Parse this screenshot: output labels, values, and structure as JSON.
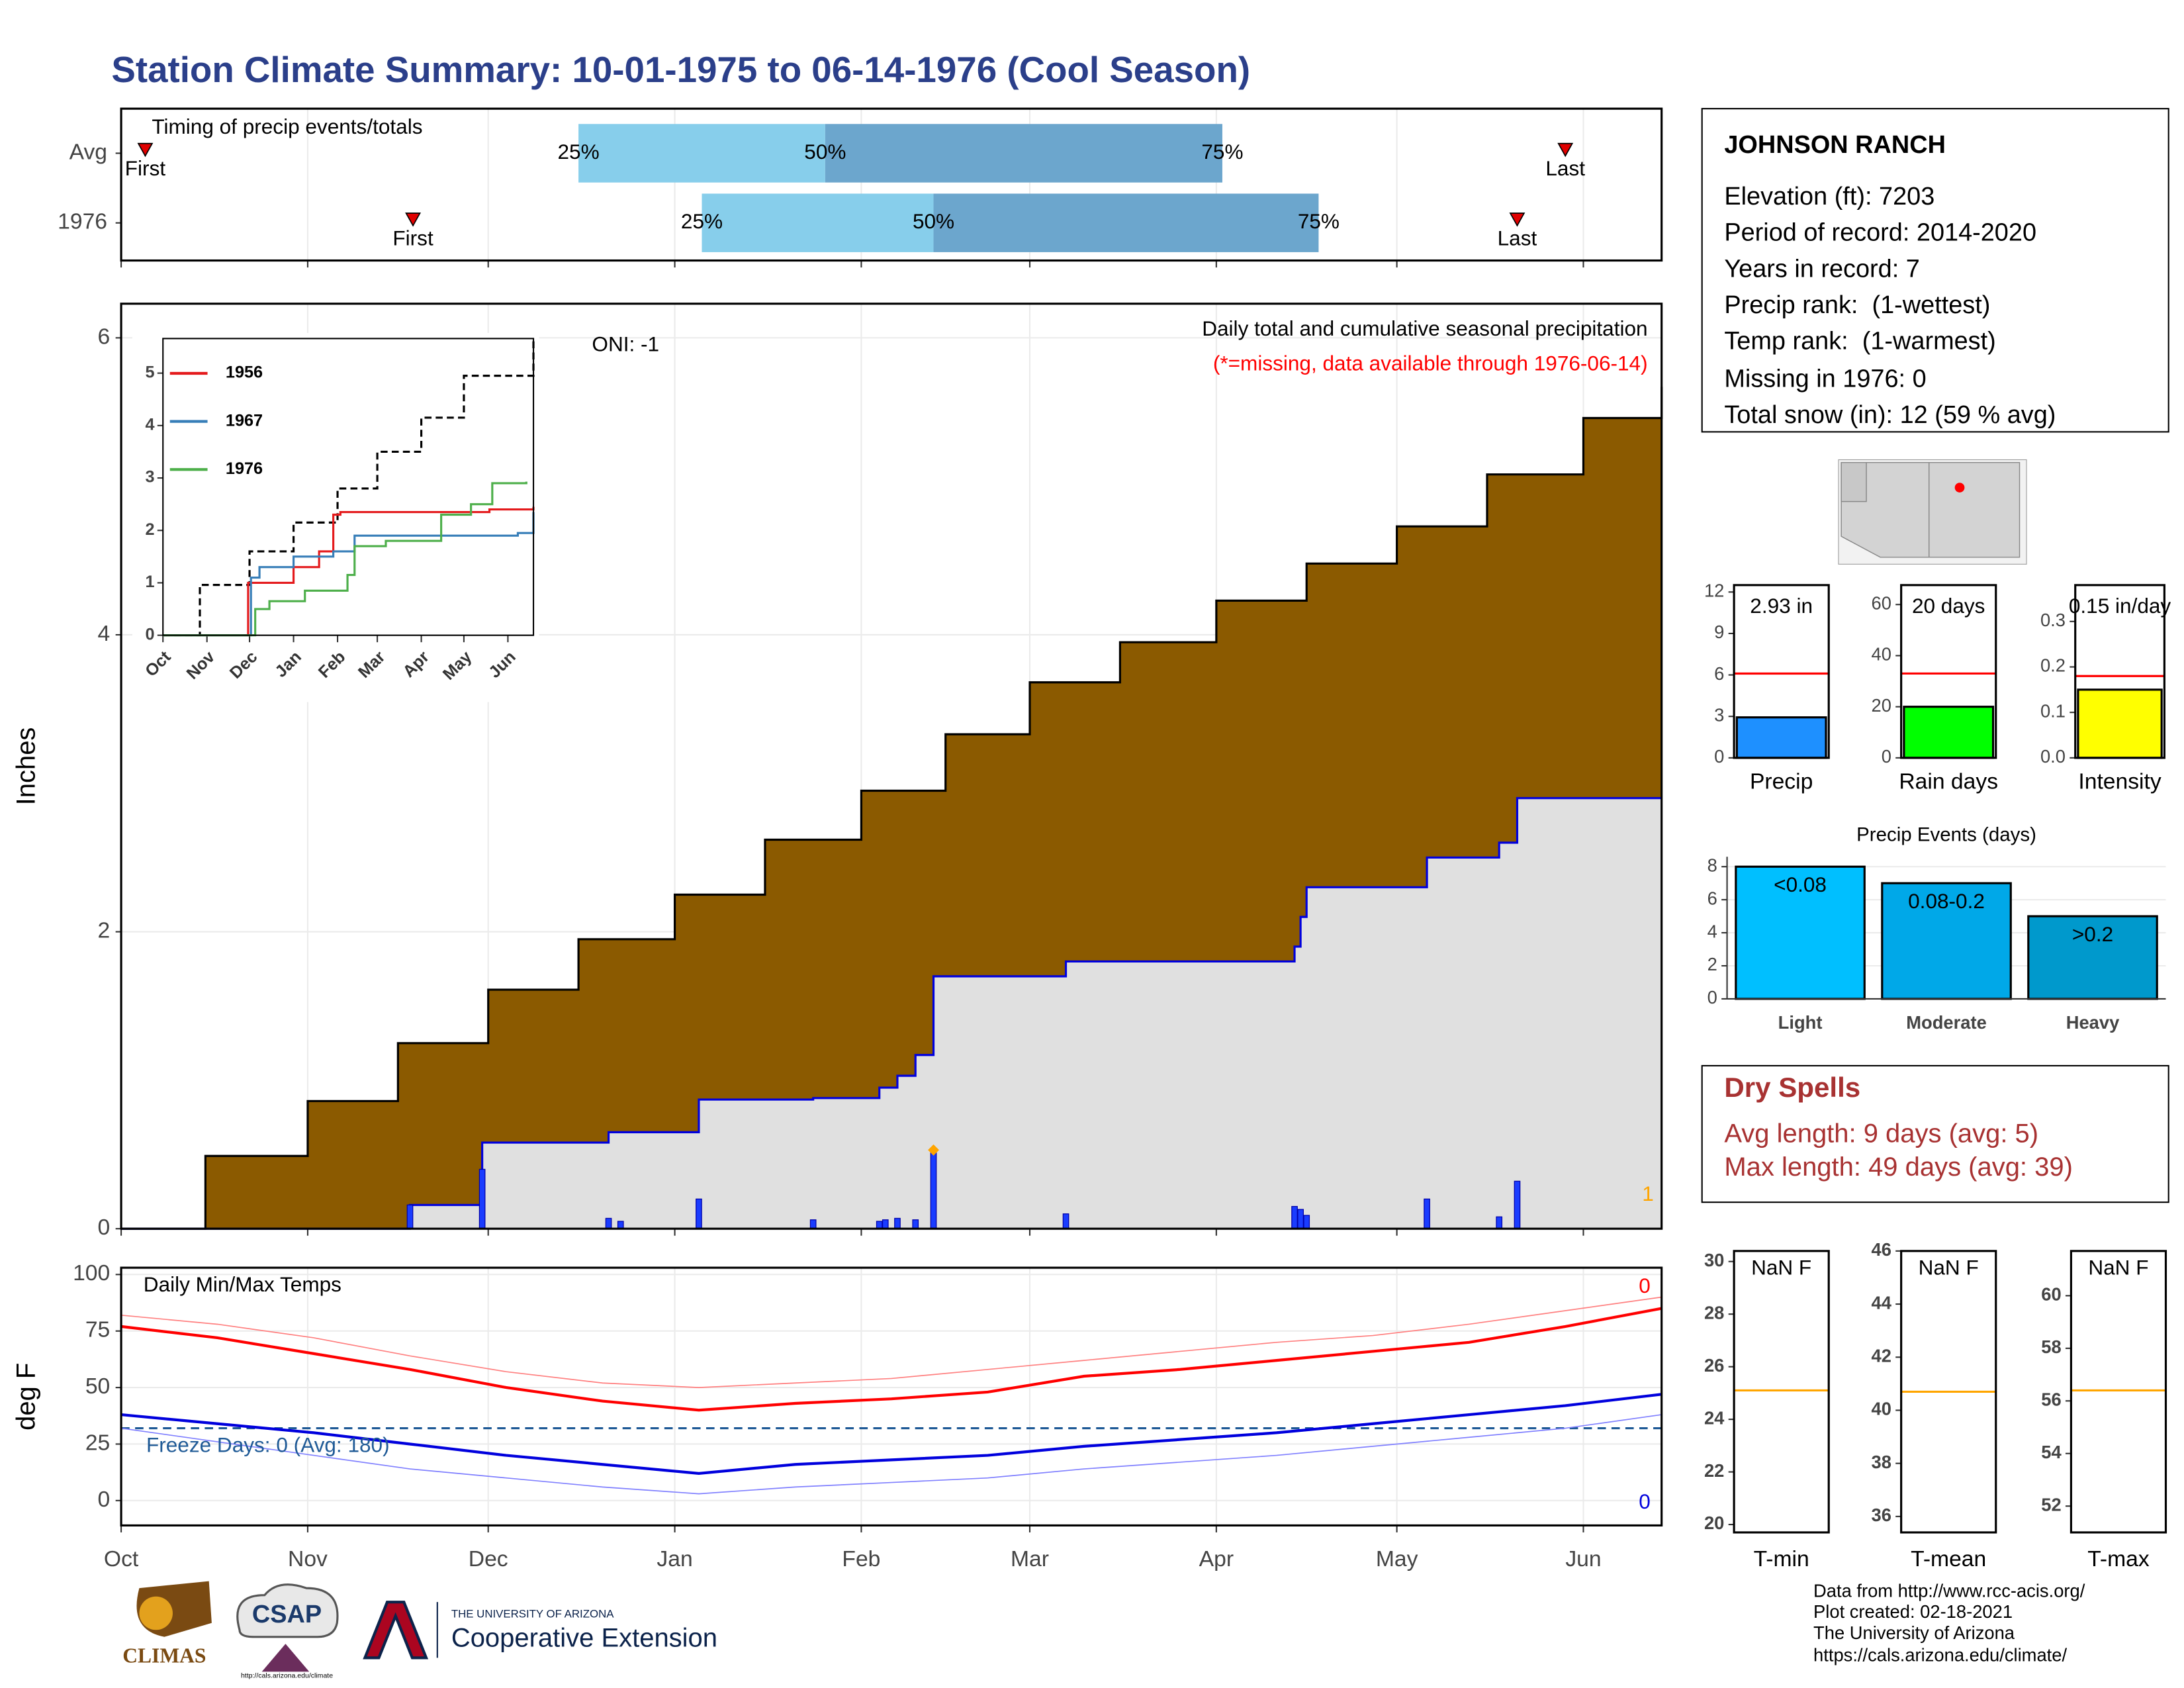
{
  "title": "Station Climate Summary: 10-01-1975 to 06-14-1976 (Cool Season)",
  "station": {
    "name": "JOHNSON RANCH",
    "lines": [
      "Elevation (ft): 7203",
      "Period of record: 2014-2020",
      "Years in record: 7",
      "Precip rank:  (1-wettest)",
      "Temp rank:  (1-warmest)",
      "Missing in 1976: 0",
      "Total snow (in): 12 (59 % avg)"
    ]
  },
  "dry_spells": {
    "title": "Dry Spells",
    "lines": [
      "Avg length: 9 days (avg: 5)",
      "Max length: 49 days (avg: 39)"
    ]
  },
  "footer": [
    "Data from http://www.rcc-acis.org/",
    "Plot created: 02-18-2021",
    "The University of Arizona",
    "https://cals.arizona.edu/climate/"
  ],
  "logos": {
    "climas": "CLIMAS",
    "csap": "CSAP",
    "csap_url": "http://cals.arizona.edu/climate",
    "ua": "THE UNIVERSITY OF ARIZONA",
    "extension": "Cooperative Extension"
  },
  "chart_data": [
    {
      "type": "timeline",
      "title": "Timing of precip events/totals",
      "categories": [
        "Avg",
        "1976"
      ],
      "xlim": [
        0,
        256
      ],
      "xticks": [
        0,
        31,
        61,
        92,
        123,
        151,
        182,
        212,
        243
      ],
      "rows": [
        {
          "first": 4,
          "q25": 76,
          "q50": 117,
          "q75": 183,
          "last": 240
        },
        {
          "first": 48.5,
          "q25": 96.5,
          "q50": 135,
          "q75": 199,
          "last": 232
        }
      ],
      "labels": {
        "first": "First",
        "q25": "25%",
        "q50": "50%",
        "q75": "75%",
        "last": "Last"
      },
      "colors": {
        "lower": "#87ceeb",
        "upper": "#6ca6cd",
        "marker": "#e00000"
      }
    },
    {
      "type": "area",
      "title": "Daily total and cumulative seasonal precipitation",
      "subtitle": "(*=missing, data available through 1976-06-14)",
      "annotation": "ONI: -1",
      "right_label": "1",
      "y_label": "Inches",
      "xlim": [
        0,
        256
      ],
      "xticks": [
        0,
        31,
        61,
        92,
        123,
        151,
        182,
        212,
        243
      ],
      "ylim": [
        0,
        6.23
      ],
      "yticks": [
        0,
        2,
        4,
        6
      ],
      "grid": true,
      "average": {
        "color": "#8b5a00",
        "line_color": "#000000",
        "x": [
          0,
          14,
          31,
          46,
          61,
          76,
          92,
          107,
          123,
          137,
          151,
          166,
          182,
          197,
          212,
          227,
          243,
          256
        ],
        "values": [
          0,
          0.49,
          0.86,
          1.25,
          1.61,
          1.95,
          2.25,
          2.62,
          2.95,
          3.33,
          3.68,
          3.95,
          4.23,
          4.48,
          4.73,
          5.08,
          5.46,
          5.67
        ]
      },
      "season": {
        "color": "#0000dd",
        "fill": "#e0e0e0",
        "x": [
          0,
          48,
          60,
          81,
          96,
          115,
          126,
          129,
          132,
          135,
          157,
          195,
          196,
          197,
          217,
          229,
          232,
          256
        ],
        "values": [
          0,
          0.16,
          0.58,
          0.65,
          0.87,
          0.88,
          0.95,
          1.03,
          1.17,
          1.7,
          1.8,
          1.9,
          2.1,
          2.3,
          2.5,
          2.6,
          2.9,
          2.9
        ]
      },
      "daily": {
        "color": "#1a3cff",
        "x": [
          48,
          60,
          81,
          83,
          96,
          115,
          126,
          127,
          129,
          132,
          135,
          157,
          195,
          196,
          197,
          217,
          229,
          232
        ],
        "values": [
          0.16,
          0.4,
          0.07,
          0.05,
          0.2,
          0.06,
          0.05,
          0.06,
          0.07,
          0.06,
          0.53,
          0.1,
          0.15,
          0.13,
          0.09,
          0.2,
          0.08,
          0.32
        ]
      },
      "max_marker": {
        "x": 135,
        "value": 0.53,
        "color": "#ffa500"
      }
    },
    {
      "type": "line",
      "step": true,
      "xlim": [
        0,
        261
      ],
      "xticks": [
        {
          "value": 0,
          "label": "Oct"
        },
        {
          "value": 31,
          "label": "Nov"
        },
        {
          "value": 61,
          "label": "Dec"
        },
        {
          "value": 92,
          "label": "Jan"
        },
        {
          "value": 123,
          "label": "Feb"
        },
        {
          "value": 151,
          "label": "Mar"
        },
        {
          "value": 182,
          "label": "Apr"
        },
        {
          "value": 212,
          "label": "May"
        },
        {
          "value": 243,
          "label": "Jun"
        }
      ],
      "ylim": [
        0,
        5.66
      ],
      "yticks": [
        0,
        1,
        2,
        3,
        4,
        5
      ],
      "series": [
        {
          "color": "#000000",
          "dash": true,
          "x": [
            0,
            26,
            61,
            92,
            123,
            151,
            182,
            212,
            261
          ],
          "values": [
            0,
            0.96,
            1.6,
            2.15,
            2.8,
            3.5,
            4.15,
            4.95,
            5.66
          ]
        },
        {
          "name": "1956",
          "color": "#e41a1c",
          "x": [
            0,
            60,
            92,
            110,
            120,
            125,
            230,
            261
          ],
          "values": [
            0,
            1.0,
            1.3,
            1.6,
            2.3,
            2.35,
            2.4,
            2.45
          ]
        },
        {
          "name": "1967",
          "color": "#377eb8",
          "x": [
            0,
            62,
            68,
            92,
            120,
            135,
            250,
            261
          ],
          "values": [
            0,
            1.1,
            1.3,
            1.5,
            1.6,
            1.9,
            1.95,
            2.35
          ]
        },
        {
          "name": "1976",
          "color": "#4daf4a",
          "x": [
            0,
            65,
            75,
            100,
            130,
            135,
            157,
            196,
            217,
            232,
            256
          ],
          "values": [
            0,
            0.5,
            0.65,
            0.85,
            1.15,
            1.7,
            1.8,
            2.3,
            2.5,
            2.9,
            2.93
          ]
        }
      ]
    },
    {
      "type": "line",
      "title": "Daily Min/Max Temps",
      "annotation": "Freeze Days: 0 (Avg: 180)",
      "y_label": "deg F",
      "right_labels": [
        "0",
        "0"
      ],
      "freeze_line": 32,
      "xlim": [
        0,
        256
      ],
      "xticks": [
        {
          "value": 0,
          "label": "Oct"
        },
        {
          "value": 31,
          "label": "Nov"
        },
        {
          "value": 61,
          "label": "Dec"
        },
        {
          "value": 92,
          "label": "Jan"
        },
        {
          "value": 123,
          "label": "Feb"
        },
        {
          "value": 151,
          "label": "Mar"
        },
        {
          "value": 182,
          "label": "Apr"
        },
        {
          "value": 212,
          "label": "May"
        },
        {
          "value": 243,
          "label": "Jun"
        }
      ],
      "ylim": [
        -11,
        103
      ],
      "yticks": [
        0,
        25,
        50,
        75,
        100
      ],
      "grid": true,
      "series": [
        {
          "color": "#ff8080",
          "line_width": 0.8,
          "x": [
            0,
            16,
            32,
            48,
            64,
            80,
            96,
            112,
            128,
            144,
            160,
            176,
            192,
            208,
            224,
            240,
            256
          ],
          "values": [
            82,
            78,
            72,
            64,
            57,
            52,
            50,
            52,
            54,
            58,
            62,
            66,
            70,
            73,
            78,
            84,
            90
          ]
        },
        {
          "color": "#ff0000",
          "line_width": 2,
          "x": [
            0,
            16,
            32,
            48,
            64,
            80,
            96,
            112,
            128,
            144,
            160,
            176,
            192,
            208,
            224,
            240,
            256
          ],
          "values": [
            77,
            72,
            65,
            58,
            50,
            44,
            40,
            43,
            45,
            48,
            55,
            58,
            62,
            66,
            70,
            77,
            85
          ]
        },
        {
          "color": "#0000dd",
          "line_width": 2,
          "x": [
            0,
            16,
            32,
            48,
            64,
            80,
            96,
            112,
            128,
            144,
            160,
            176,
            192,
            208,
            224,
            240,
            256
          ],
          "values": [
            38,
            34,
            30,
            25,
            20,
            16,
            12,
            16,
            18,
            20,
            24,
            27,
            30,
            34,
            38,
            42,
            47
          ]
        },
        {
          "color": "#8080ff",
          "line_width": 0.8,
          "x": [
            0,
            16,
            32,
            48,
            64,
            80,
            96,
            112,
            128,
            144,
            160,
            176,
            192,
            208,
            224,
            240,
            256
          ],
          "values": [
            32,
            26,
            20,
            14,
            10,
            6,
            3,
            6,
            8,
            10,
            14,
            17,
            20,
            24,
            28,
            32,
            38
          ]
        }
      ]
    },
    {
      "type": "bar",
      "categories": [
        "Precip"
      ],
      "values": [
        2.93
      ],
      "value_labels": [
        "2.93 in"
      ],
      "reference": 6.1,
      "colors": [
        "#1e90ff"
      ],
      "reference_color": "#ff0000",
      "ylim": [
        0,
        12.5
      ],
      "yticks": [
        0,
        3,
        6,
        9,
        12
      ]
    },
    {
      "type": "bar",
      "categories": [
        "Rain days"
      ],
      "values": [
        20
      ],
      "value_labels": [
        "20 days"
      ],
      "reference": 33,
      "colors": [
        "#00ff00"
      ],
      "reference_color": "#ff0000",
      "ylim": [
        0,
        67.6
      ],
      "yticks": [
        0,
        20,
        40,
        60
      ]
    },
    {
      "type": "bar",
      "categories": [
        "Intensity"
      ],
      "values": [
        0.15
      ],
      "value_labels": [
        "0.15 in/day"
      ],
      "reference": 0.18,
      "colors": [
        "#ffff00"
      ],
      "reference_color": "#ff0000",
      "ylim": [
        0,
        0.38
      ],
      "yticks": [
        {
          "value": 0,
          "label": "0.0"
        },
        0.1,
        0.2,
        0.3
      ]
    },
    {
      "type": "bar",
      "title": "Precip Events (days)",
      "categories": [
        "Light",
        "Moderate",
        "Heavy"
      ],
      "values": [
        8,
        7,
        5
      ],
      "bin_labels": [
        "<0.08",
        "0.08-0.2",
        ">0.2"
      ],
      "colors": [
        "#00bfff",
        "#00a8e8",
        "#0099cc"
      ],
      "ylim": [
        0,
        8.6
      ],
      "yticks": [
        0,
        2,
        4,
        6,
        8
      ],
      "grid": true
    },
    {
      "type": "level",
      "category": "T-min",
      "label": "NaN F",
      "reference": 25.1,
      "color": "#ffa500",
      "ylim": [
        19.7,
        30.4
      ],
      "yticks": [
        20,
        22,
        24,
        26,
        28,
        30
      ]
    },
    {
      "type": "level",
      "category": "T-mean",
      "label": "NaN F",
      "reference": 40.7,
      "color": "#ffa500",
      "ylim": [
        35.4,
        46
      ],
      "yticks": [
        36,
        38,
        40,
        42,
        44,
        46
      ]
    },
    {
      "type": "level",
      "category": "T-max",
      "label": "NaN F",
      "reference": 56.4,
      "color": "#ffa500",
      "ylim": [
        51,
        61.7
      ],
      "yticks": [
        52,
        54,
        56,
        58,
        60
      ]
    }
  ]
}
